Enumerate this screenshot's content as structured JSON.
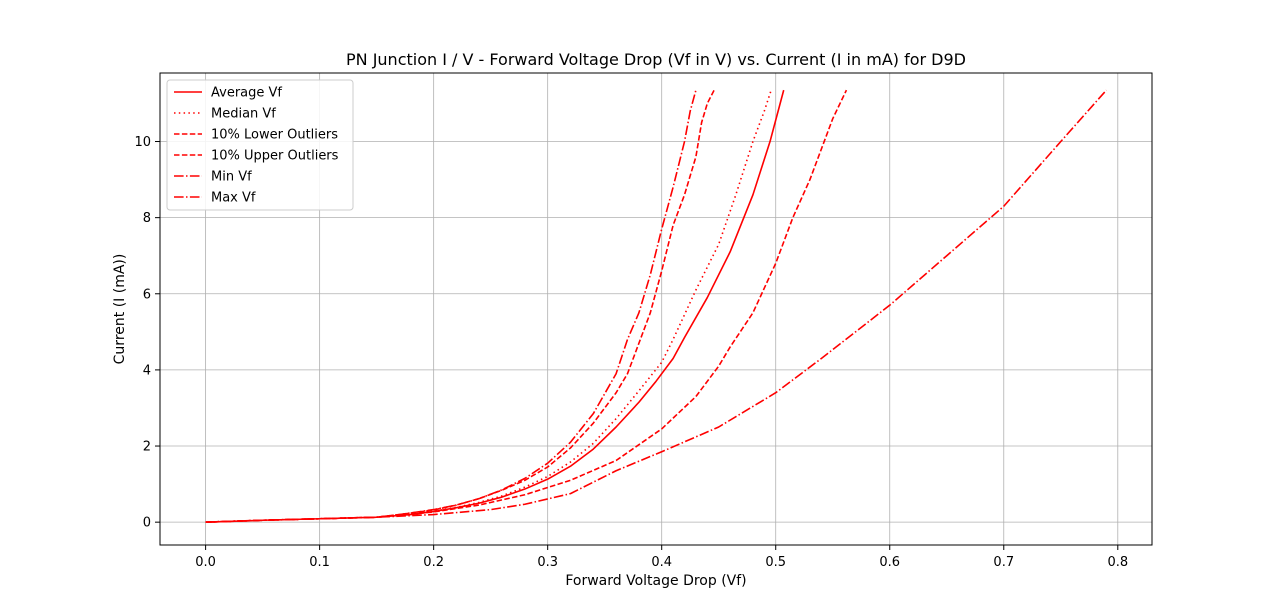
{
  "chart_data": {
    "type": "line",
    "title": "PN Junction I / V - Forward Voltage Drop (Vf in V) vs. Current (I in mA) for D9D",
    "xlabel": "Forward Voltage Drop (Vf)",
    "ylabel": "Current (I (mA))",
    "xlim": [
      -0.04,
      0.83
    ],
    "ylim": [
      -0.6,
      11.8
    ],
    "xticks": [
      0.0,
      0.1,
      0.2,
      0.3,
      0.4,
      0.5,
      0.6,
      0.7,
      0.8
    ],
    "xtick_labels": [
      "0.0",
      "0.1",
      "0.2",
      "0.3",
      "0.4",
      "0.5",
      "0.6",
      "0.7",
      "0.8"
    ],
    "yticks": [
      0,
      2,
      4,
      6,
      8,
      10
    ],
    "ytick_labels": [
      "0",
      "2",
      "4",
      "6",
      "8",
      "10"
    ],
    "grid": true,
    "legend_position": "top-left",
    "line_color": "#ff0000",
    "series": [
      {
        "name": "Average Vf",
        "style": "solid",
        "points": [
          [
            0.0,
            0.0
          ],
          [
            0.05,
            0.05
          ],
          [
            0.1,
            0.09
          ],
          [
            0.15,
            0.13
          ],
          [
            0.18,
            0.2
          ],
          [
            0.2,
            0.28
          ],
          [
            0.22,
            0.38
          ],
          [
            0.24,
            0.5
          ],
          [
            0.26,
            0.66
          ],
          [
            0.28,
            0.87
          ],
          [
            0.3,
            1.13
          ],
          [
            0.32,
            1.47
          ],
          [
            0.34,
            1.92
          ],
          [
            0.36,
            2.5
          ],
          [
            0.38,
            3.15
          ],
          [
            0.395,
            3.7
          ],
          [
            0.41,
            4.3
          ],
          [
            0.42,
            4.85
          ],
          [
            0.44,
            5.9
          ],
          [
            0.46,
            7.1
          ],
          [
            0.48,
            8.6
          ],
          [
            0.495,
            10.0
          ],
          [
            0.507,
            11.35
          ]
        ]
      },
      {
        "name": "Median Vf",
        "style": "dotted",
        "points": [
          [
            0.0,
            0.0
          ],
          [
            0.05,
            0.05
          ],
          [
            0.1,
            0.09
          ],
          [
            0.15,
            0.13
          ],
          [
            0.18,
            0.2
          ],
          [
            0.2,
            0.29
          ],
          [
            0.22,
            0.39
          ],
          [
            0.24,
            0.52
          ],
          [
            0.26,
            0.69
          ],
          [
            0.28,
            0.92
          ],
          [
            0.3,
            1.2
          ],
          [
            0.32,
            1.58
          ],
          [
            0.34,
            2.07
          ],
          [
            0.36,
            2.72
          ],
          [
            0.38,
            3.45
          ],
          [
            0.4,
            4.2
          ],
          [
            0.41,
            4.8
          ],
          [
            0.43,
            6.1
          ],
          [
            0.45,
            7.3
          ],
          [
            0.465,
            8.6
          ],
          [
            0.48,
            10.0
          ],
          [
            0.49,
            10.8
          ],
          [
            0.496,
            11.35
          ]
        ]
      },
      {
        "name": "10% Lower Outliers",
        "style": "dashed",
        "points": [
          [
            0.0,
            0.0
          ],
          [
            0.05,
            0.05
          ],
          [
            0.1,
            0.09
          ],
          [
            0.15,
            0.13
          ],
          [
            0.17,
            0.2
          ],
          [
            0.2,
            0.32
          ],
          [
            0.22,
            0.45
          ],
          [
            0.24,
            0.62
          ],
          [
            0.26,
            0.84
          ],
          [
            0.28,
            1.1
          ],
          [
            0.3,
            1.45
          ],
          [
            0.32,
            1.95
          ],
          [
            0.34,
            2.6
          ],
          [
            0.36,
            3.4
          ],
          [
            0.37,
            3.9
          ],
          [
            0.38,
            4.7
          ],
          [
            0.39,
            5.5
          ],
          [
            0.4,
            6.6
          ],
          [
            0.41,
            7.8
          ],
          [
            0.42,
            8.6
          ],
          [
            0.43,
            9.6
          ],
          [
            0.435,
            10.5
          ],
          [
            0.44,
            11.0
          ],
          [
            0.446,
            11.35
          ]
        ]
      },
      {
        "name": "10% Upper Outliers",
        "style": "dashed",
        "points": [
          [
            0.0,
            0.0
          ],
          [
            0.05,
            0.05
          ],
          [
            0.1,
            0.09
          ],
          [
            0.15,
            0.13
          ],
          [
            0.2,
            0.27
          ],
          [
            0.24,
            0.45
          ],
          [
            0.28,
            0.72
          ],
          [
            0.32,
            1.1
          ],
          [
            0.36,
            1.62
          ],
          [
            0.4,
            2.45
          ],
          [
            0.43,
            3.3
          ],
          [
            0.45,
            4.1
          ],
          [
            0.46,
            4.6
          ],
          [
            0.48,
            5.5
          ],
          [
            0.5,
            6.8
          ],
          [
            0.515,
            8.0
          ],
          [
            0.53,
            9.0
          ],
          [
            0.54,
            9.8
          ],
          [
            0.55,
            10.6
          ],
          [
            0.562,
            11.35
          ]
        ]
      },
      {
        "name": "Min Vf",
        "style": "dashdot",
        "points": [
          [
            0.0,
            0.0
          ],
          [
            0.05,
            0.05
          ],
          [
            0.1,
            0.09
          ],
          [
            0.15,
            0.13
          ],
          [
            0.2,
            0.2
          ],
          [
            0.25,
            0.33
          ],
          [
            0.28,
            0.47
          ],
          [
            0.32,
            0.75
          ],
          [
            0.36,
            1.35
          ],
          [
            0.4,
            1.85
          ],
          [
            0.45,
            2.5
          ],
          [
            0.5,
            3.4
          ],
          [
            0.54,
            4.3
          ],
          [
            0.57,
            5.0
          ],
          [
            0.6,
            5.7
          ],
          [
            0.65,
            7.0
          ],
          [
            0.7,
            8.3
          ],
          [
            0.75,
            10.0
          ],
          [
            0.79,
            11.35
          ]
        ]
      },
      {
        "name": "Max Vf",
        "style": "dashdot",
        "points": [
          [
            0.0,
            0.0
          ],
          [
            0.05,
            0.05
          ],
          [
            0.1,
            0.09
          ],
          [
            0.15,
            0.13
          ],
          [
            0.17,
            0.2
          ],
          [
            0.2,
            0.33
          ],
          [
            0.22,
            0.45
          ],
          [
            0.24,
            0.62
          ],
          [
            0.26,
            0.85
          ],
          [
            0.28,
            1.15
          ],
          [
            0.3,
            1.55
          ],
          [
            0.32,
            2.1
          ],
          [
            0.34,
            2.85
          ],
          [
            0.36,
            3.9
          ],
          [
            0.37,
            4.8
          ],
          [
            0.38,
            5.5
          ],
          [
            0.39,
            6.5
          ],
          [
            0.4,
            7.7
          ],
          [
            0.41,
            8.8
          ],
          [
            0.42,
            10.0
          ],
          [
            0.425,
            10.8
          ],
          [
            0.43,
            11.35
          ]
        ]
      }
    ]
  }
}
